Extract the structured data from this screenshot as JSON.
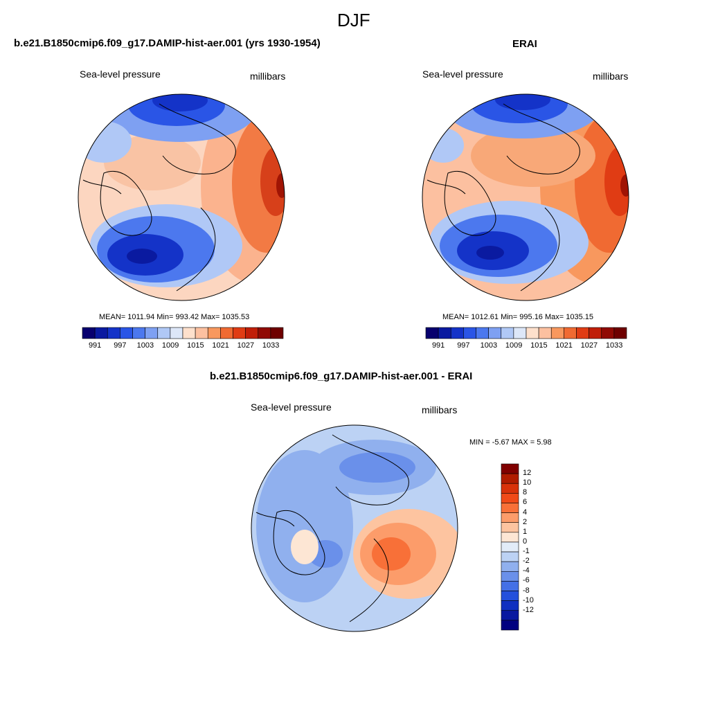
{
  "figure": {
    "title": "DJF"
  },
  "panels": [
    {
      "title": "b.e21.B1850cmip6.f09_g17.DAMIP-hist-aer.001 (yrs 1930-1954)",
      "left_label": "Sea-level pressure",
      "right_label": "millibars",
      "stats": "MEAN= 1011.94  Min= 993.42  Max= 1035.53"
    },
    {
      "title": "ERAI",
      "left_label": "Sea-level pressure",
      "right_label": "millibars",
      "stats": "MEAN= 1012.61  Min= 995.16  Max= 1035.15"
    },
    {
      "title": "b.e21.B1850cmip6.f09_g17.DAMIP-hist-aer.001 - ERAI",
      "left_label": "Sea-level pressure",
      "right_label": "millibars",
      "stats": "MIN =  -5.67 MAX =   5.98"
    }
  ],
  "colorbars": {
    "abs_levels": [
      "991",
      "997",
      "1003",
      "1009",
      "1015",
      "1021",
      "1027",
      "1033"
    ],
    "abs_colors": [
      "#08006e",
      "#0a1aa0",
      "#1433c8",
      "#2a55e6",
      "#4c78ee",
      "#7ea0f2",
      "#b0c8f6",
      "#dde7f8",
      "#fde0cc",
      "#fcc0a0",
      "#f8985e",
      "#f06a32",
      "#e03c14",
      "#c01e08",
      "#900a04",
      "#6e0000"
    ],
    "diff_levels": [
      "12",
      "10",
      "8",
      "6",
      "4",
      "2",
      "1",
      "0",
      "-1",
      "-2",
      "-4",
      "-6",
      "-8",
      "-10",
      "-12"
    ],
    "diff_colors": [
      "#800000",
      "#b01c00",
      "#d8320a",
      "#f04a18",
      "#f87038",
      "#fc9c6a",
      "#fdc4a0",
      "#fde6d4",
      "#e2ecf8",
      "#bcd2f4",
      "#90b0ee",
      "#6a90ea",
      "#4470e6",
      "#2450dc",
      "#1030c0",
      "#0818a0",
      "#000080"
    ]
  },
  "chart_data": [
    {
      "type": "heatmap",
      "title": "b.e21.B1850cmip6.f09_g17.DAMIP-hist-aer.001 (yrs 1930-1954)",
      "variable": "Sea-level pressure",
      "units": "millibars",
      "projection": "north polar stereographic",
      "mean": 1011.94,
      "min": 993.42,
      "max": 1035.53,
      "colorbar_levels": [
        991,
        997,
        1003,
        1009,
        1015,
        1021,
        1027,
        1033
      ]
    },
    {
      "type": "heatmap",
      "title": "ERAI",
      "variable": "Sea-level pressure",
      "units": "millibars",
      "projection": "north polar stereographic",
      "mean": 1012.61,
      "min": 995.16,
      "max": 1035.15,
      "colorbar_levels": [
        991,
        997,
        1003,
        1009,
        1015,
        1021,
        1027,
        1033
      ]
    },
    {
      "type": "heatmap",
      "title": "b.e21.B1850cmip6.f09_g17.DAMIP-hist-aer.001 - ERAI",
      "variable": "Sea-level pressure",
      "units": "millibars",
      "projection": "north polar stereographic",
      "min": -5.67,
      "max": 5.98,
      "colorbar_levels": [
        -12,
        -10,
        -8,
        -6,
        -4,
        -2,
        -1,
        0,
        1,
        2,
        4,
        6,
        8,
        10,
        12
      ]
    }
  ]
}
